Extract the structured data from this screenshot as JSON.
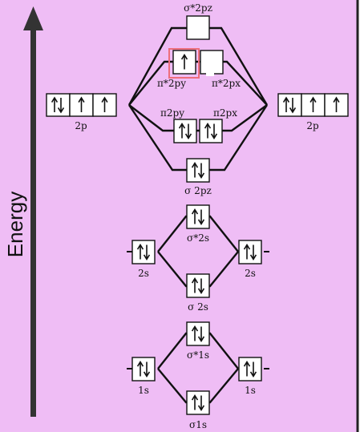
{
  "colors": {
    "background": "#efbdf5",
    "frame": "#222222",
    "highlight": "#ee6e7c",
    "axis": "#333333"
  },
  "axis_label": "Energy",
  "orbitals": [
    {
      "id": "sigma-star-2pz",
      "label": "σ*2pz",
      "electrons": [
        0
      ]
    },
    {
      "id": "pi-star-2p",
      "labels": [
        "π*2py",
        "π*2px"
      ],
      "electrons": [
        1,
        0
      ],
      "highlighted_index": 0
    },
    {
      "id": "pi-2p",
      "labels": [
        "π2py",
        "π2px"
      ],
      "electrons": [
        2,
        2
      ]
    },
    {
      "id": "sigma-2pz",
      "label": "σ 2pz",
      "electrons": [
        2
      ]
    },
    {
      "id": "sigma-star-2s",
      "label": "σ*2s",
      "electrons": [
        2
      ]
    },
    {
      "id": "sigma-2s",
      "label": "σ 2s",
      "electrons": [
        2
      ]
    },
    {
      "id": "sigma-star-1s",
      "label": "σ*1s",
      "electrons": [
        2
      ]
    },
    {
      "id": "sigma-1s",
      "label": "σ1s",
      "electrons": [
        2
      ]
    }
  ],
  "atomic": {
    "left": [
      {
        "id": "2p",
        "label": "2p",
        "electrons": [
          2,
          1,
          1
        ]
      },
      {
        "id": "2s",
        "label": "2s",
        "electrons": [
          2
        ]
      },
      {
        "id": "1s",
        "label": "1s",
        "electrons": [
          2
        ]
      }
    ],
    "right": [
      {
        "id": "2p",
        "label": "2p",
        "electrons": [
          2,
          1,
          1
        ]
      },
      {
        "id": "2s",
        "label": "2s",
        "electrons": [
          2
        ]
      },
      {
        "id": "1s",
        "label": "1s",
        "electrons": [
          2
        ]
      }
    ]
  }
}
